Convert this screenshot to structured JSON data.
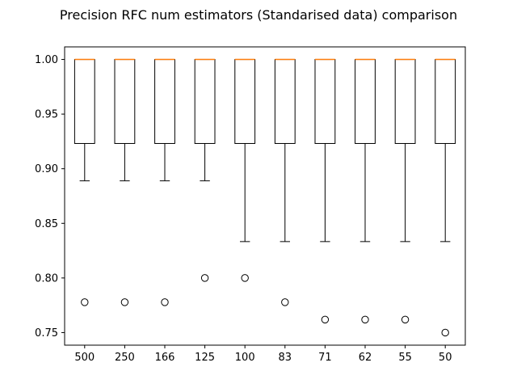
{
  "chart_data": {
    "type": "boxplot",
    "title": "Precision RFC num estimators (Standarised data) comparison",
    "xlabel": "",
    "ylabel": "",
    "ylim": [
      0.7385,
      1.0115
    ],
    "yticks": [
      0.75,
      0.8,
      0.85,
      0.9,
      0.95,
      1.0
    ],
    "ytick_labels": [
      "0.75",
      "0.80",
      "0.85",
      "0.90",
      "0.95",
      "1.00"
    ],
    "grid": false,
    "box_color": "#000000",
    "median_color": "#ff7f0e",
    "categories": [
      "500",
      "250",
      "166",
      "125",
      "100",
      "83",
      "71",
      "62",
      "55",
      "50"
    ],
    "boxes": [
      {
        "whisker_low": 0.8889,
        "q1": 0.9231,
        "median": 1.0,
        "q3": 1.0,
        "whisker_high": 1.0,
        "outliers": [
          0.7778
        ]
      },
      {
        "whisker_low": 0.8889,
        "q1": 0.9231,
        "median": 1.0,
        "q3": 1.0,
        "whisker_high": 1.0,
        "outliers": [
          0.7778
        ]
      },
      {
        "whisker_low": 0.8889,
        "q1": 0.9231,
        "median": 1.0,
        "q3": 1.0,
        "whisker_high": 1.0,
        "outliers": [
          0.7778
        ]
      },
      {
        "whisker_low": 0.8889,
        "q1": 0.9231,
        "median": 1.0,
        "q3": 1.0,
        "whisker_high": 1.0,
        "outliers": [
          0.8
        ]
      },
      {
        "whisker_low": 0.8333,
        "q1": 0.9231,
        "median": 1.0,
        "q3": 1.0,
        "whisker_high": 1.0,
        "outliers": [
          0.8
        ]
      },
      {
        "whisker_low": 0.8333,
        "q1": 0.9231,
        "median": 1.0,
        "q3": 1.0,
        "whisker_high": 1.0,
        "outliers": [
          0.7778
        ]
      },
      {
        "whisker_low": 0.8333,
        "q1": 0.9231,
        "median": 1.0,
        "q3": 1.0,
        "whisker_high": 1.0,
        "outliers": [
          0.7619
        ]
      },
      {
        "whisker_low": 0.8333,
        "q1": 0.9231,
        "median": 1.0,
        "q3": 1.0,
        "whisker_high": 1.0,
        "outliers": [
          0.7619
        ]
      },
      {
        "whisker_low": 0.8333,
        "q1": 0.9231,
        "median": 1.0,
        "q3": 1.0,
        "whisker_high": 1.0,
        "outliers": [
          0.7619
        ]
      },
      {
        "whisker_low": 0.8333,
        "q1": 0.9231,
        "median": 1.0,
        "q3": 1.0,
        "whisker_high": 1.0,
        "outliers": [
          0.75
        ]
      }
    ]
  }
}
